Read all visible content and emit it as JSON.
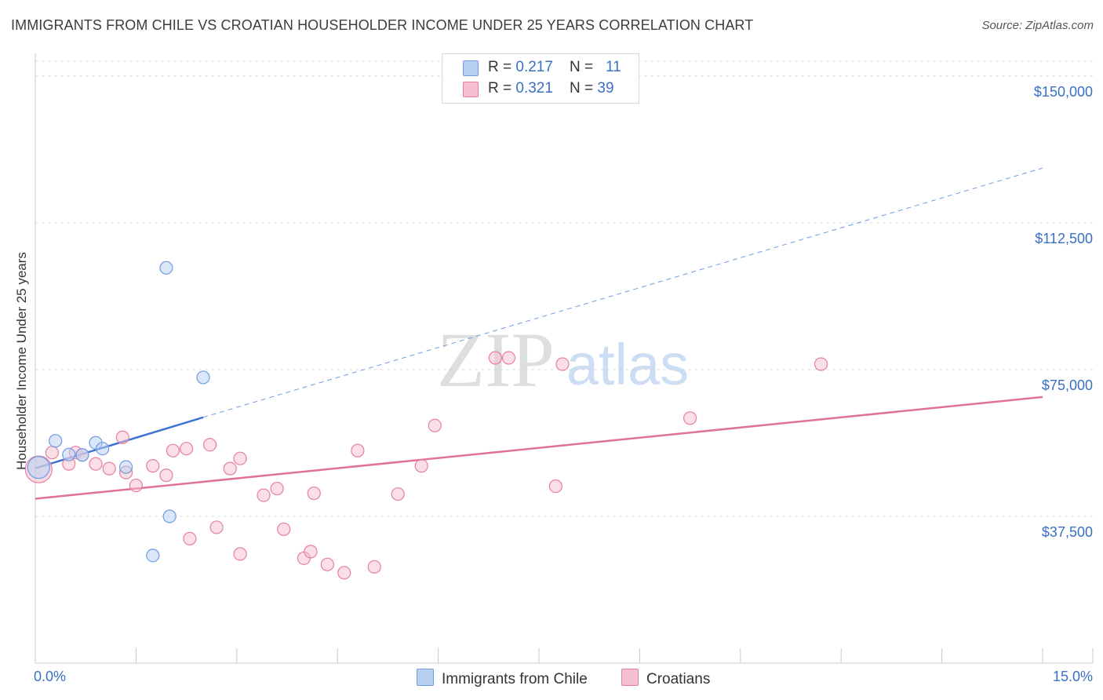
{
  "chart_data": {
    "type": "scatter",
    "title": "IMMIGRANTS FROM CHILE VS CROATIAN HOUSEHOLDER INCOME UNDER 25 YEARS CORRELATION CHART",
    "source": "Source: ZipAtlas.com",
    "xlabel": "",
    "ylabel": "Householder Income Under 25 years",
    "xlim": [
      0,
      15
    ],
    "ylim": [
      0,
      155000
    ],
    "x_tick_labels": [
      "0.0%",
      "15.0%"
    ],
    "y_ticks": [
      37500,
      75000,
      112500,
      150000
    ],
    "y_tick_labels": [
      "$37,500",
      "$75,000",
      "$112,500",
      "$150,000"
    ],
    "watermark": {
      "zip": "ZIP",
      "atlas": "atlas"
    },
    "legend": [
      {
        "r_label": "R = ",
        "r_value": "0.217",
        "n_label": "N = ",
        "n_value": "11"
      },
      {
        "r_label": "R = ",
        "r_value": "0.321",
        "n_label": "N = ",
        "n_value": "39"
      }
    ],
    "series": [
      {
        "name": "Immigrants from Chile",
        "color": "#6f9be3",
        "fill": "#b7d0f3",
        "points": [
          [
            0.05,
            50000
          ],
          [
            0.3,
            56800
          ],
          [
            0.5,
            53300
          ],
          [
            0.9,
            56300
          ],
          [
            1.0,
            54800
          ],
          [
            1.35,
            50100
          ],
          [
            1.75,
            27500
          ],
          [
            1.95,
            101000
          ],
          [
            2.0,
            37500
          ],
          [
            2.5,
            73000
          ],
          [
            0.7,
            53200
          ]
        ],
        "trend": {
          "x0": 0,
          "y0": 49800,
          "x1": 2.5,
          "y1": 62800,
          "x_dash_end": 15,
          "y_dash_end": 126500
        }
      },
      {
        "name": "Croatians",
        "color": "#e67fa0",
        "fill": "#f6bfd0",
        "points": [
          [
            0.05,
            49500
          ],
          [
            0.25,
            53800
          ],
          [
            0.5,
            50900
          ],
          [
            0.6,
            53800
          ],
          [
            0.7,
            53200
          ],
          [
            0.9,
            50900
          ],
          [
            1.1,
            49700
          ],
          [
            1.3,
            57700
          ],
          [
            1.35,
            48700
          ],
          [
            1.5,
            45400
          ],
          [
            1.75,
            50400
          ],
          [
            1.95,
            48000
          ],
          [
            2.05,
            54300
          ],
          [
            2.25,
            54800
          ],
          [
            2.3,
            31800
          ],
          [
            2.6,
            55800
          ],
          [
            2.7,
            34700
          ],
          [
            2.9,
            49700
          ],
          [
            3.05,
            27900
          ],
          [
            3.05,
            52300
          ],
          [
            3.4,
            42900
          ],
          [
            3.6,
            44600
          ],
          [
            3.7,
            34200
          ],
          [
            4.0,
            26800
          ],
          [
            4.1,
            28500
          ],
          [
            4.15,
            43400
          ],
          [
            4.35,
            25200
          ],
          [
            4.6,
            23100
          ],
          [
            4.8,
            54300
          ],
          [
            5.05,
            24600
          ],
          [
            5.4,
            43200
          ],
          [
            5.75,
            50400
          ],
          [
            5.95,
            60700
          ],
          [
            6.85,
            78000
          ],
          [
            7.05,
            78000
          ],
          [
            7.75,
            45200
          ],
          [
            7.85,
            76400
          ],
          [
            9.75,
            62600
          ],
          [
            11.7,
            76400
          ]
        ],
        "trend": {
          "x0": 0,
          "y0": 42000,
          "x1": 15,
          "y1": 68000
        }
      }
    ]
  }
}
